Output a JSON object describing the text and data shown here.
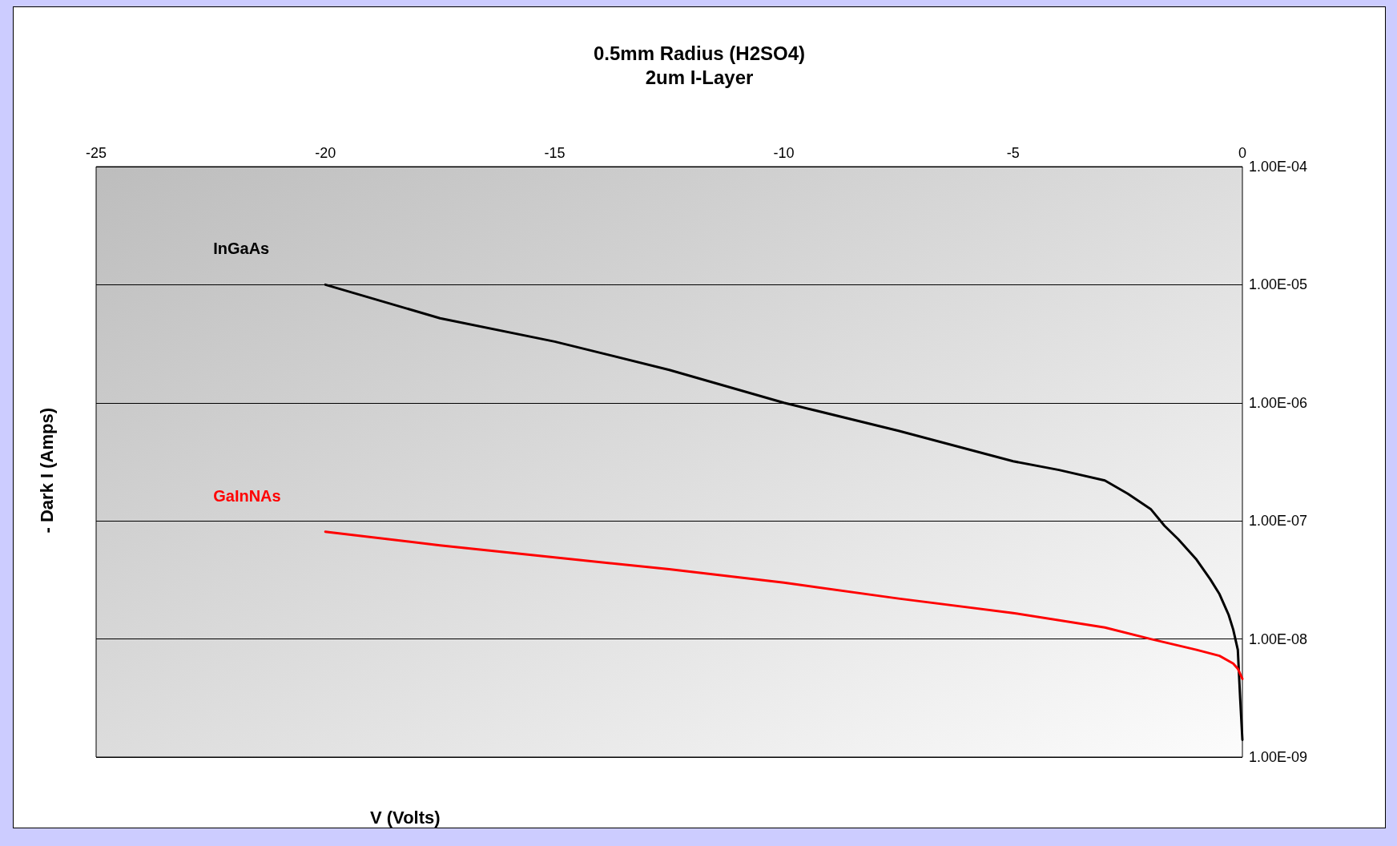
{
  "chart_data": {
    "type": "line",
    "title": "0.5mm Radius (H2SO4)",
    "subtitle": "2um I-Layer",
    "xlabel": "V (Volts)",
    "ylabel": "- Dark I (Amps)",
    "log": "y",
    "grid": "y",
    "legend": false,
    "marker": "none",
    "line_style": "solid",
    "xlim": [
      -25,
      0
    ],
    "xticks": [
      -25,
      -20,
      -15,
      -10,
      -5,
      0
    ],
    "ylim": [
      1e-09,
      0.0001
    ],
    "yticks": [
      {
        "value": 1e-09,
        "label": "1.00E-09"
      },
      {
        "value": 1e-08,
        "label": "1.00E-08"
      },
      {
        "value": 1e-07,
        "label": "1.00E-07"
      },
      {
        "value": 1e-06,
        "label": "1.00E-06"
      },
      {
        "value": 1e-05,
        "label": "1.00E-05"
      },
      {
        "value": 0.0001,
        "label": "1.00E-04"
      }
    ],
    "series": [
      {
        "name": "InGaAs",
        "color": "#000000",
        "x": [
          -20,
          -17.5,
          -15,
          -12.5,
          -10,
          -7.5,
          -5,
          -4,
          -3,
          -2.5,
          -2,
          -1.7,
          -1.4,
          -1,
          -0.7,
          -0.5,
          -0.3,
          -0.2,
          -0.1,
          -0.05,
          0
        ],
        "values": [
          1e-05,
          5.2e-06,
          3.3e-06,
          1.9e-06,
          1e-06,
          5.8e-07,
          3.2e-07,
          2.7e-07,
          2.2e-07,
          1.7e-07,
          1.26e-07,
          9.1e-08,
          7e-08,
          4.7e-08,
          3.2e-08,
          2.4e-08,
          1.6e-08,
          1.2e-08,
          8.1e-09,
          3.2e-09,
          1.4e-09
        ]
      },
      {
        "name": "GaInNAs",
        "color": "#ff0000",
        "x": [
          -20,
          -17.5,
          -15,
          -12.5,
          -10,
          -7.5,
          -5,
          -3,
          -2,
          -1,
          -0.5,
          -0.2,
          -0.1,
          0
        ],
        "values": [
          8.1e-08,
          6.2e-08,
          4.9e-08,
          3.9e-08,
          3e-08,
          2.2e-08,
          1.66e-08,
          1.25e-08,
          1e-08,
          8.1e-09,
          7.2e-09,
          6.2e-09,
          5.6e-09,
          4.6e-09
        ]
      }
    ]
  }
}
